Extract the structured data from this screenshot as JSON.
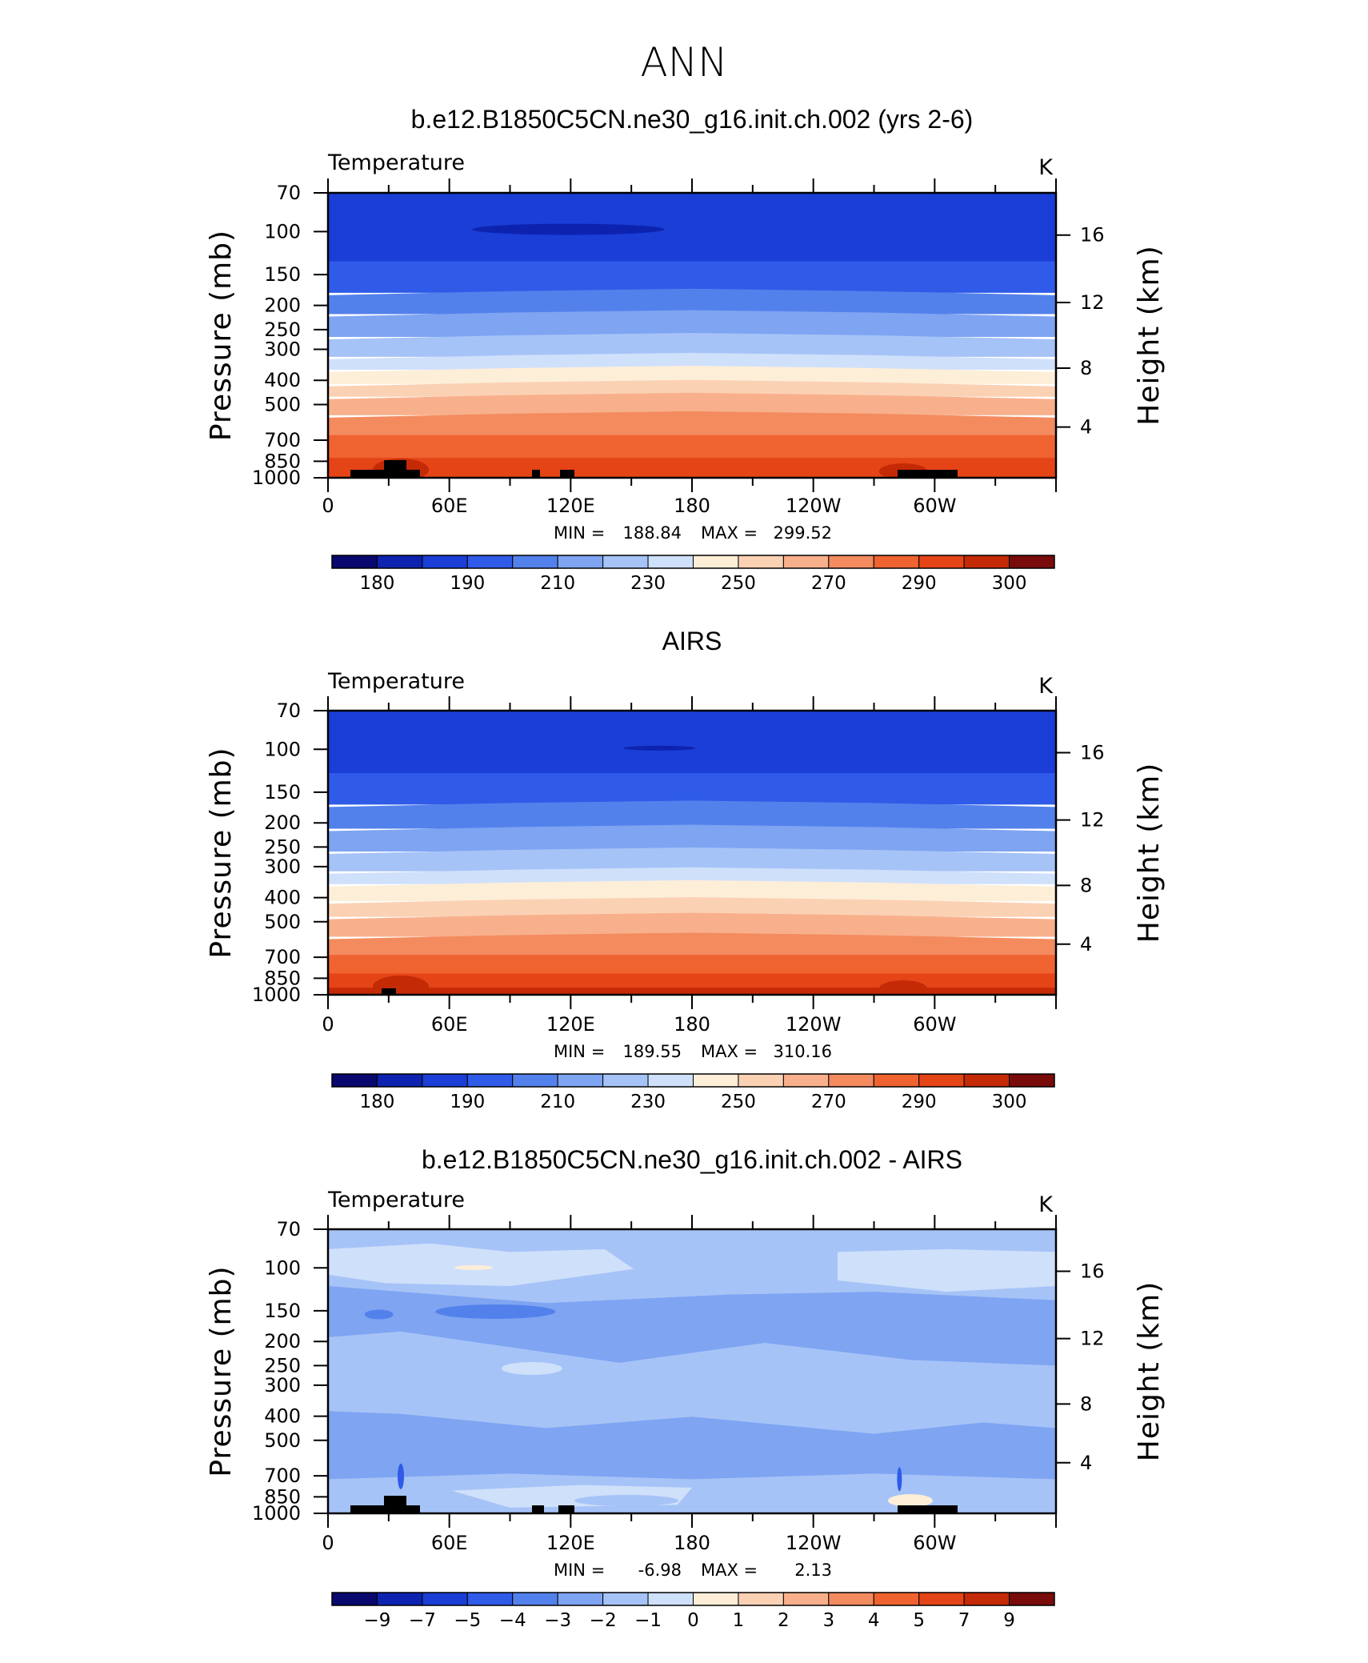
{
  "main_title": "ANN",
  "chart_data": [
    {
      "type": "heatmap",
      "title": "b.e12.B1850C5CN.ne30_g16.init.ch.002 (yrs 2-6)",
      "variable_label": "Temperature",
      "units_label": "K",
      "ylabel": "Pressure (mb)",
      "ylabel_right": "Height (km)",
      "x_tick_labels": [
        "0",
        "60E",
        "120E",
        "180",
        "120W",
        "60W"
      ],
      "y_tick_labels": [
        "70",
        "100",
        "150",
        "200",
        "250",
        "300",
        "400",
        "500",
        "700",
        "850",
        "1000"
      ],
      "y_right_tick_labels": [
        "16",
        "12",
        "8",
        "4"
      ],
      "min_label": "MIN =",
      "min_value": "188.84",
      "max_label": "MAX =",
      "max_value": "299.52",
      "colorbar_labels": [
        "180",
        "190",
        "210",
        "230",
        "250",
        "270",
        "290",
        "300"
      ]
    },
    {
      "type": "heatmap",
      "title": "AIRS",
      "variable_label": "Temperature",
      "units_label": "K",
      "ylabel": "Pressure (mb)",
      "ylabel_right": "Height (km)",
      "x_tick_labels": [
        "0",
        "60E",
        "120E",
        "180",
        "120W",
        "60W"
      ],
      "y_tick_labels": [
        "70",
        "100",
        "150",
        "200",
        "250",
        "300",
        "400",
        "500",
        "700",
        "850",
        "1000"
      ],
      "y_right_tick_labels": [
        "16",
        "12",
        "8",
        "4"
      ],
      "min_label": "MIN =",
      "min_value": "189.55",
      "max_label": "MAX =",
      "max_value": "310.16",
      "colorbar_labels": [
        "180",
        "190",
        "210",
        "230",
        "250",
        "270",
        "290",
        "300"
      ]
    },
    {
      "type": "heatmap",
      "title": "b.e12.B1850C5CN.ne30_g16.init.ch.002 - AIRS",
      "variable_label": "Temperature",
      "units_label": "K",
      "ylabel": "Pressure (mb)",
      "ylabel_right": "Height (km)",
      "x_tick_labels": [
        "0",
        "60E",
        "120E",
        "180",
        "120W",
        "60W"
      ],
      "y_tick_labels": [
        "70",
        "100",
        "150",
        "200",
        "250",
        "300",
        "400",
        "500",
        "700",
        "850",
        "1000"
      ],
      "y_right_tick_labels": [
        "16",
        "12",
        "8",
        "4"
      ],
      "min_label": "MIN =",
      "min_value": "-6.98",
      "max_label": "MAX =",
      "max_value": "2.13",
      "colorbar_labels": [
        "−9",
        "−7",
        "−5",
        "−4",
        "−3",
        "−2",
        "−1",
        "0",
        "1",
        "2",
        "3",
        "4",
        "5",
        "7",
        "9"
      ]
    }
  ],
  "colors": {
    "palette": [
      "#08086e",
      "#0d23b0",
      "#1a3ed6",
      "#2f5be8",
      "#5381ec",
      "#7ea4f2",
      "#a6c3f7",
      "#cfe0fb",
      "#fdeed8",
      "#fbd1b4",
      "#f8b08c",
      "#f38b5f",
      "#ef6330",
      "#e54416",
      "#c42a06",
      "#7a0b0b"
    ],
    "frame": "#000000"
  }
}
